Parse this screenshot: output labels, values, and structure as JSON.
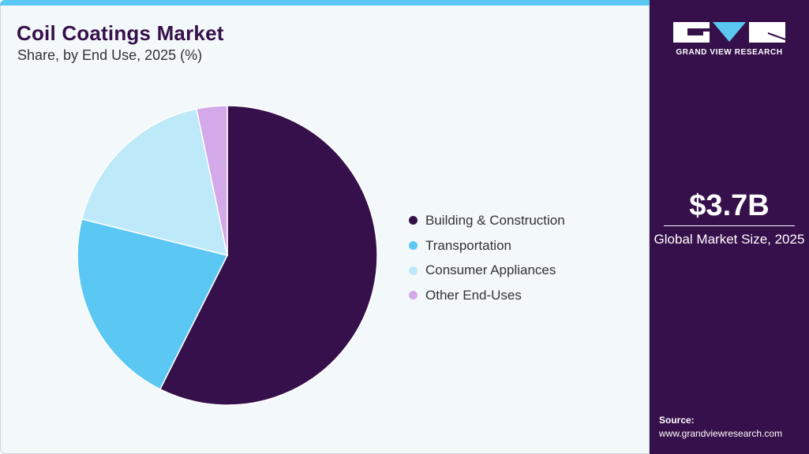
{
  "header": {
    "title": "Coil Coatings Market",
    "subtitle": "Share, by End Use, 2025 (%)"
  },
  "chart_data": {
    "type": "pie",
    "title": "Coil Coatings Market",
    "subtitle": "Share, by End Use, 2025 (%)",
    "categories": [
      "Building & Construction",
      "Transportation",
      "Consumer Appliances",
      "Other End-Uses"
    ],
    "values": [
      57.4,
      21.5,
      17.8,
      3.3
    ],
    "colors": [
      "#36104a",
      "#5bc8f3",
      "#bde9f9",
      "#d4a9ea"
    ],
    "start_angle": "12 o'clock, clockwise",
    "legend_position": "right"
  },
  "sidebar": {
    "logo_text": "GRAND VIEW RESEARCH",
    "market_value": "$3.7B",
    "market_label": "Global Market Size, 2025",
    "source_label": "Source:",
    "source_url": "www.grandviewresearch.com"
  }
}
